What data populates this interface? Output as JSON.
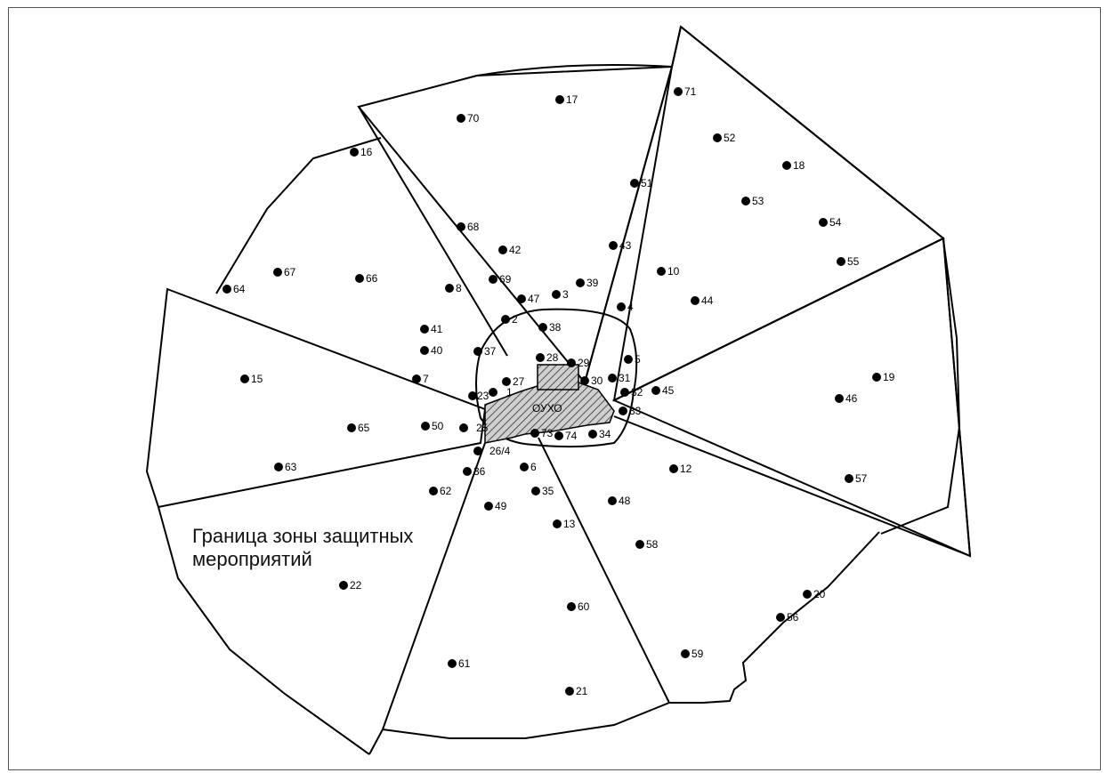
{
  "map": {
    "zone_boundary_label": "Граница зоны защитных мероприятий",
    "facility_label": "ОУХО",
    "points": [
      "1",
      "2",
      "3",
      "4",
      "5",
      "6",
      "7",
      "8",
      "10",
      "12",
      "13",
      "15",
      "16",
      "17",
      "18",
      "19",
      "20",
      "21",
      "22",
      "23",
      "25",
      "26/4",
      "27",
      "28",
      "29",
      "30",
      "31",
      "32",
      "33",
      "34",
      "35",
      "36",
      "37",
      "38",
      "39",
      "40",
      "41",
      "42",
      "43",
      "44",
      "45",
      "46",
      "47",
      "48",
      "49",
      "50",
      "51",
      "52",
      "53",
      "54",
      "55",
      "56",
      "57",
      "58",
      "59",
      "60",
      "61",
      "62",
      "63",
      "64",
      "65",
      "66",
      "67",
      "68",
      "69",
      "70",
      "71",
      "73",
      "74"
    ]
  }
}
